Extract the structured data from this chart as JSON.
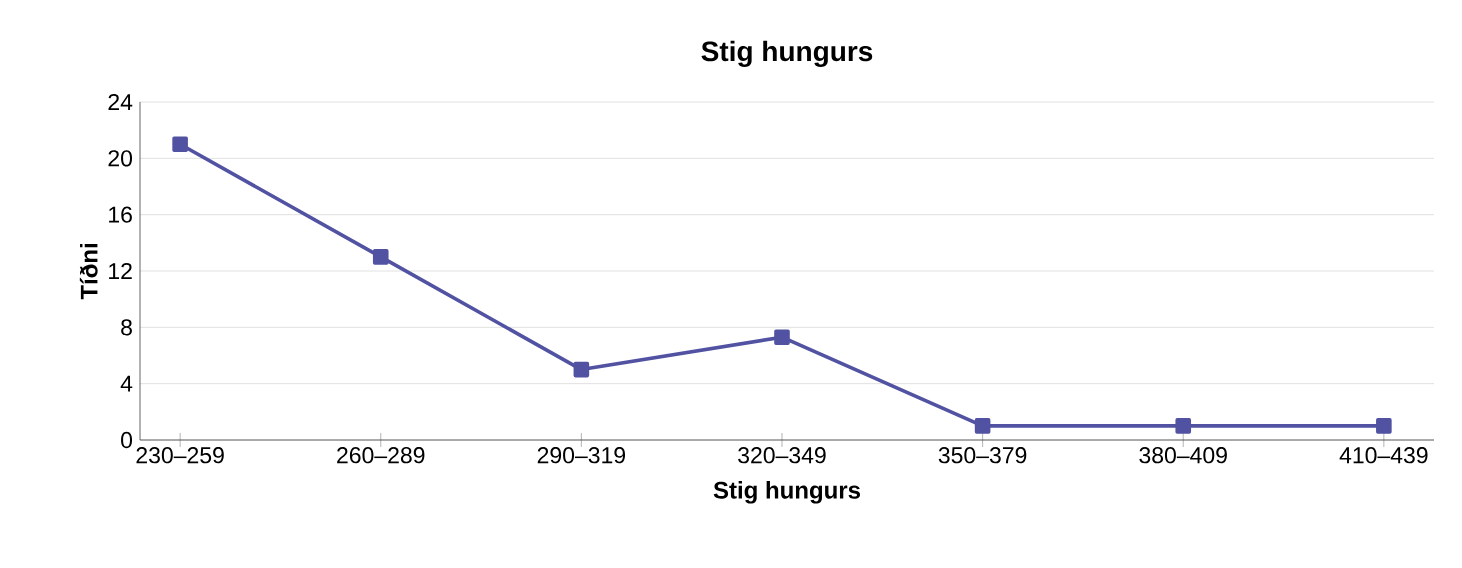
{
  "chart_data": {
    "type": "line",
    "title": "Stig hungurs",
    "xlabel": "Stig hungurs",
    "ylabel": "Tíðni",
    "categories": [
      "230–259",
      "260–289",
      "290–319",
      "320–349",
      "350–379",
      "380–409",
      "410–439"
    ],
    "series": [
      {
        "color": "#5252a3",
        "values": [
          21,
          13,
          5,
          7.3,
          1,
          1,
          1
        ]
      }
    ],
    "ylim": [
      0,
      24
    ],
    "yticks": [
      0,
      4,
      8,
      12,
      16,
      20,
      24
    ],
    "grid": "y",
    "marker": "square",
    "line_style": "solid"
  }
}
